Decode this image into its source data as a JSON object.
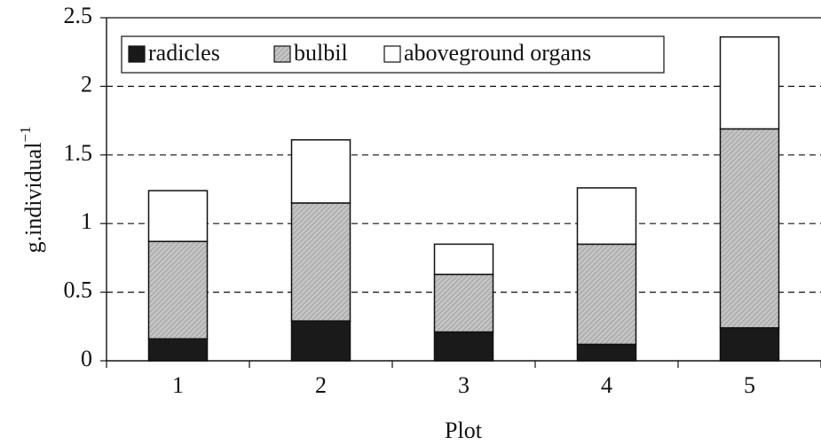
{
  "chart_data": {
    "type": "stacked_bar",
    "xlabel": "Plot",
    "ylabel": "g.individual",
    "ylabel_exponent": "−1",
    "categories": [
      "1",
      "2",
      "3",
      "4",
      "5"
    ],
    "series": [
      {
        "name": "radicles",
        "color": "#1a1a1a",
        "values": [
          0.16,
          0.29,
          0.21,
          0.12,
          0.24
        ]
      },
      {
        "name": "bulbil",
        "color": "#c4c4c4",
        "values": [
          0.71,
          0.86,
          0.42,
          0.73,
          1.45
        ]
      },
      {
        "name": "aboveground organs",
        "color": "#ffffff",
        "values": [
          0.37,
          0.46,
          0.22,
          0.41,
          0.67
        ]
      }
    ],
    "ylim": [
      0,
      2.5
    ],
    "yticks": [
      0,
      0.5,
      1,
      1.5,
      2,
      2.5
    ],
    "grid": true,
    "legend": "top-left"
  }
}
